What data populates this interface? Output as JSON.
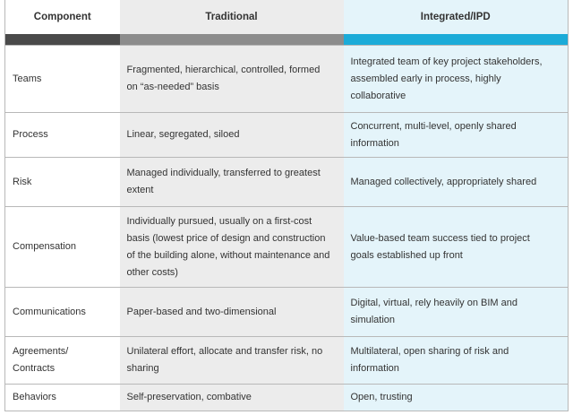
{
  "header": {
    "columns": [
      "Component",
      "Traditional",
      "Integrated/IPD"
    ]
  },
  "table": {
    "rows": [
      [
        [
          "Teams"
        ],
        [
          "Fragmented, hierarchical, controlled, formed",
          "on “as-needed” basis"
        ],
        [
          "Integrated team of key project stakeholders,",
          "assembled early in process, highly",
          "collaborative"
        ]
      ],
      [
        [
          "Process"
        ],
        [
          "Linear, segregated, siloed"
        ],
        [
          "Concurrent, multi-level, openly shared",
          "information"
        ]
      ],
      [
        [
          "Risk"
        ],
        [
          "Managed individually, transferred to greatest",
          "extent"
        ],
        [
          "Managed collectively, appropriately shared"
        ]
      ],
      [
        [
          "Compensation"
        ],
        [
          "Individually pursued, usually on a first-cost",
          "basis (lowest price of design and construction",
          "of the building alone, without maintenance and",
          "other costs)"
        ],
        [
          "Value-based team success tied to project",
          "goals established up front"
        ]
      ],
      [
        [
          "Communications"
        ],
        [
          "Paper-based and two-dimensional"
        ],
        [
          "Digital, virtual, rely heavily on BIM and",
          "simulation"
        ]
      ],
      [
        [
          "Agreements/",
          "Contracts"
        ],
        [
          "Unilateral effort, allocate and transfer risk, no",
          "sharing"
        ],
        [
          "Multilateral, open sharing of risk and",
          "information"
        ]
      ],
      [
        [
          "Behaviors"
        ],
        [
          "Self-preservation, combative"
        ],
        [
          "Open, trusting"
        ]
      ]
    ]
  }
}
